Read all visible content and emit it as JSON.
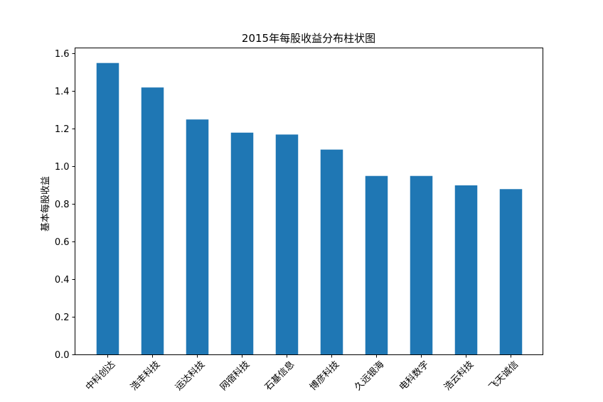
{
  "chart_data": {
    "type": "bar",
    "title": "2015年每股收益分布柱状图",
    "xlabel": "",
    "ylabel": "基本每股收益",
    "categories": [
      "中科创达",
      "浩丰科技",
      "运达科技",
      "网宿科技",
      "石基信息",
      "博彦科技",
      "久远银海",
      "电科数字",
      "浩云科技",
      "飞天诚信"
    ],
    "values": [
      1.55,
      1.42,
      1.25,
      1.18,
      1.17,
      1.09,
      0.95,
      0.95,
      0.9,
      0.88
    ],
    "ylim": [
      0,
      1.63
    ],
    "yticks": [
      "0.0",
      "0.2",
      "0.4",
      "0.6",
      "0.8",
      "1.0",
      "1.2",
      "1.4",
      "1.6"
    ],
    "bar_color": "#1f77b4",
    "grid": false,
    "legend": "none"
  }
}
